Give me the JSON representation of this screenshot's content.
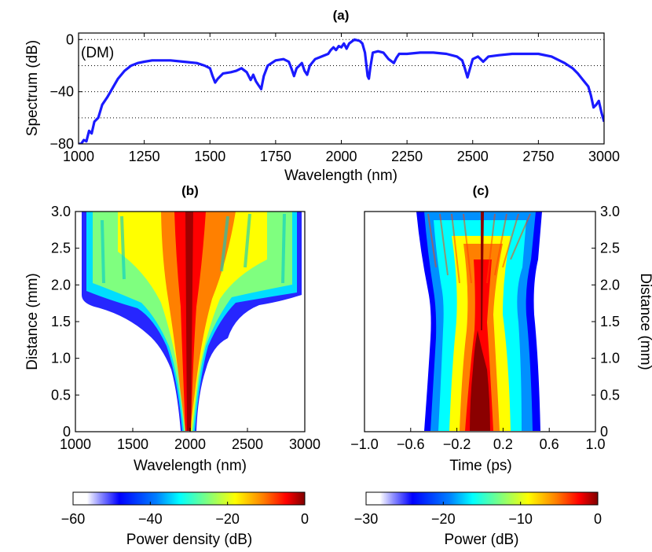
{
  "chart_data": [
    {
      "id": "a",
      "type": "line",
      "title": "(a)",
      "annotation": "(DM)",
      "xlabel": "Wavelength (nm)",
      "ylabel": "Spectrum (dB)",
      "xlim": [
        1000,
        3000
      ],
      "ylim": [
        -80,
        5
      ],
      "xticks": [
        1000,
        1250,
        1500,
        1750,
        2000,
        2250,
        2500,
        2750,
        3000
      ],
      "xtick_labels": [
        "1000",
        "1250",
        "1500",
        "1750",
        "2000",
        "2250",
        "2500",
        "2750",
        "3000"
      ],
      "yticks": [
        0,
        -40,
        -80
      ],
      "ytick_labels": [
        "0",
        "−40",
        "−80"
      ],
      "grid_y": [
        0,
        -20,
        -40,
        -60
      ],
      "color": "#1a1aff",
      "series": [
        {
          "name": "Spectrum",
          "x": [
            1000,
            1010,
            1020,
            1030,
            1040,
            1050,
            1060,
            1075,
            1090,
            1110,
            1130,
            1150,
            1175,
            1200,
            1225,
            1250,
            1280,
            1300,
            1350,
            1400,
            1450,
            1480,
            1500,
            1510,
            1520,
            1530,
            1550,
            1580,
            1600,
            1620,
            1640,
            1655,
            1665,
            1675,
            1685,
            1695,
            1705,
            1720,
            1750,
            1780,
            1800,
            1810,
            1820,
            1830,
            1850,
            1860,
            1870,
            1880,
            1900,
            1925,
            1950,
            1960,
            1970,
            1980,
            1990,
            2000,
            2010,
            2020,
            2030,
            2050,
            2070,
            2080,
            2090,
            2100,
            2105,
            2110,
            2120,
            2140,
            2160,
            2180,
            2200,
            2210,
            2220,
            2230,
            2250,
            2300,
            2350,
            2400,
            2440,
            2460,
            2470,
            2480,
            2490,
            2500,
            2520,
            2530,
            2540,
            2560,
            2600,
            2650,
            2700,
            2750,
            2800,
            2850,
            2880,
            2900,
            2920,
            2940,
            2950,
            2960,
            2970,
            2980,
            2990,
            3000
          ],
          "values": [
            -80,
            -80,
            -77,
            -78,
            -70,
            -72,
            -63,
            -60,
            -50,
            -44,
            -37,
            -30,
            -24,
            -20,
            -18,
            -17,
            -16,
            -16,
            -16,
            -17,
            -18,
            -20,
            -22,
            -28,
            -33,
            -30,
            -26,
            -25,
            -24,
            -22,
            -25,
            -31,
            -27,
            -32,
            -35,
            -38,
            -28,
            -20,
            -16,
            -15,
            -17,
            -22,
            -28,
            -22,
            -18,
            -24,
            -27,
            -20,
            -15,
            -13,
            -11,
            -8,
            -6,
            -8,
            -5,
            -6,
            -3,
            -7,
            -3,
            0,
            -1,
            -3,
            -10,
            -28,
            -30,
            -22,
            -10,
            -9,
            -10,
            -15,
            -18,
            -14,
            -11,
            -11,
            -11,
            -10,
            -10,
            -11,
            -13,
            -16,
            -22,
            -29,
            -22,
            -15,
            -13,
            -15,
            -17,
            -13,
            -12,
            -11,
            -11,
            -11,
            -13,
            -18,
            -22,
            -26,
            -31,
            -36,
            -43,
            -52,
            -50,
            -47,
            -56,
            -63
          ]
        }
      ]
    },
    {
      "id": "b",
      "type": "heatmap",
      "title": "(b)",
      "xlabel": "Wavelength (nm)",
      "ylabel": "Distance (mm)",
      "xlim": [
        1000,
        3000
      ],
      "ylim": [
        0,
        3.0
      ],
      "xticks": [
        1000,
        1500,
        2000,
        2500,
        3000
      ],
      "xtick_labels": [
        "1000",
        "1500",
        "2000",
        "2500",
        "3000"
      ],
      "yticks": [
        0,
        0.5,
        1.0,
        1.5,
        2.0,
        2.5,
        3.0
      ],
      "ytick_labels": [
        "0",
        "0.5",
        "1.0",
        "1.5",
        "2.0",
        "2.5",
        "3.0"
      ],
      "zlim": [
        -60,
        0
      ],
      "zlabel": "Power density (dB)"
    },
    {
      "id": "c",
      "type": "heatmap",
      "title": "(c)",
      "xlabel": "Time (ps)",
      "ylabel": "Distance (mm)",
      "xlim": [
        -1.0,
        1.0
      ],
      "ylim": [
        0,
        3.0
      ],
      "xticks": [
        -1.0,
        -0.6,
        -0.2,
        0.2,
        0.6,
        1.0
      ],
      "xtick_labels": [
        "−1.0",
        "−0.6",
        "−0.2",
        "0.2",
        "0.6",
        "1.0"
      ],
      "yticks": [
        0,
        0.5,
        1.0,
        1.5,
        2.0,
        2.5,
        3.0
      ],
      "ytick_labels": [
        "0",
        "0.5",
        "1.0",
        "1.5",
        "2.0",
        "2.5",
        "3.0"
      ],
      "zlim": [
        -30,
        0
      ],
      "zlabel": "Power (dB)"
    }
  ],
  "colorbars": [
    {
      "for": "b",
      "range": [
        -60,
        0
      ],
      "ticks": [
        -60,
        -40,
        -20,
        0
      ],
      "tick_labels": [
        "−60",
        "−40",
        "−20",
        "0"
      ],
      "label": "Power density (dB)"
    },
    {
      "for": "c",
      "range": [
        -30,
        0
      ],
      "ticks": [
        -30,
        -20,
        -10,
        0
      ],
      "tick_labels": [
        "−30",
        "−20",
        "−10",
        "0"
      ],
      "label": "Power (dB)"
    }
  ]
}
